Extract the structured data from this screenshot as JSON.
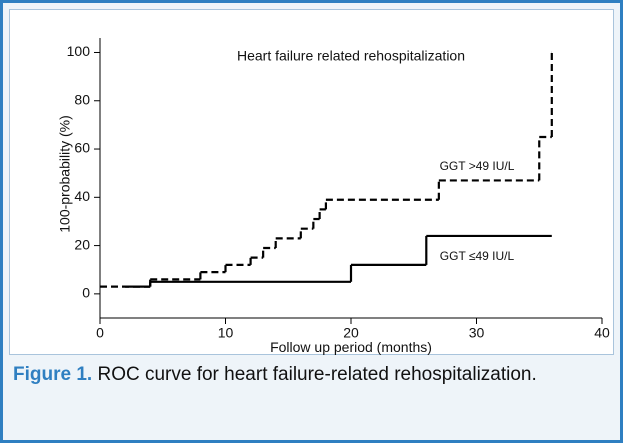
{
  "chart_data": {
    "type": "step",
    "title": "Heart failure related rehospitalization",
    "xlabel": "Follow up period (months)",
    "ylabel": "100-probability (%)",
    "xlim": [
      0,
      40
    ],
    "xticks": [
      0,
      10,
      20,
      30,
      40
    ],
    "ylim": [
      -10,
      106
    ],
    "yticks": [
      0,
      20,
      40,
      60,
      80,
      100
    ],
    "series": [
      {
        "name": "GGT >49 IU/L",
        "color": "#000000",
        "dash": true,
        "x": [
          0,
          4,
          8,
          10,
          12,
          13,
          14,
          16,
          17,
          17.5,
          18,
          27,
          35,
          36
        ],
        "values": [
          3,
          6,
          9,
          12,
          15,
          19,
          23,
          27,
          31,
          35,
          39,
          47,
          65,
          100
        ]
      },
      {
        "name": "GGT ≤49 IU/L",
        "color": "#000000",
        "dash": false,
        "x": [
          2,
          4,
          20,
          26,
          36
        ],
        "values": [
          3,
          5,
          12,
          24,
          24
        ]
      }
    ],
    "caption_label": "Figure 1.",
    "caption_text": "ROC curve for heart failure-related rehospitalization."
  }
}
